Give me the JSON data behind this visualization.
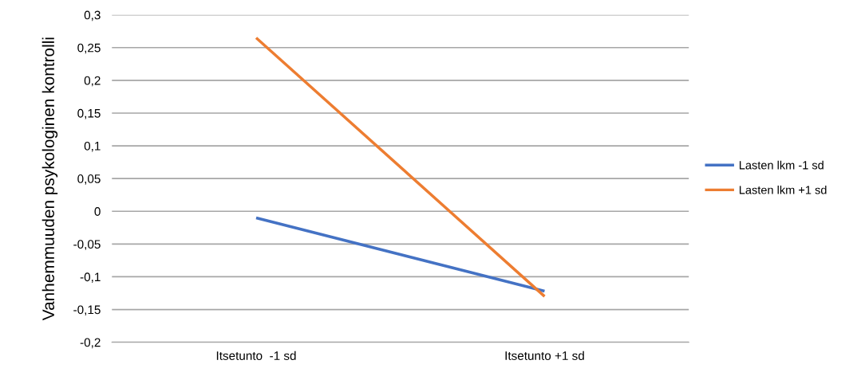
{
  "chart_data": {
    "type": "line",
    "ylabel": "Vanhemmuuden psykologinen kontrolli",
    "categories": [
      "Itsetunto  -1 sd",
      "Itsetunto +1 sd"
    ],
    "series": [
      {
        "name": "Lasten lkm -1 sd",
        "color": "#4472c4",
        "values": [
          -0.01,
          -0.122
        ]
      },
      {
        "name": "Lasten lkm +1 sd",
        "color": "#ed7d31",
        "values": [
          0.265,
          -0.13
        ]
      }
    ],
    "ylim": [
      -0.2,
      0.3
    ],
    "yticks": [
      {
        "value": -0.2,
        "label": "-0,2"
      },
      {
        "value": -0.15,
        "label": "-0,15"
      },
      {
        "value": -0.1,
        "label": "-0,1"
      },
      {
        "value": -0.05,
        "label": "-0,05"
      },
      {
        "value": 0,
        "label": "0"
      },
      {
        "value": 0.05,
        "label": "0,05"
      },
      {
        "value": 0.1,
        "label": "0,1"
      },
      {
        "value": 0.15,
        "label": "0,15"
      },
      {
        "value": 0.2,
        "label": "0,2"
      },
      {
        "value": 0.25,
        "label": "0,25"
      },
      {
        "value": 0.3,
        "label": "0,3"
      }
    ],
    "grid": "y",
    "legend": "right",
    "marker": "none",
    "line_style": "solid"
  }
}
